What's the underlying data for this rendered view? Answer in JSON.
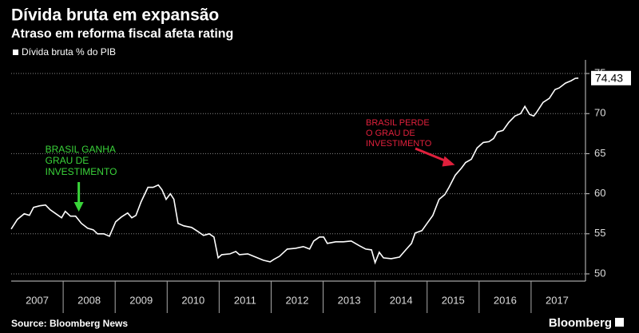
{
  "chart_data": {
    "type": "line",
    "title": "Dívida bruta em expansão",
    "subtitle": "Atraso em reforma fiscal afeta rating",
    "source": "Source: Bloomberg News",
    "brand": "Bloomberg",
    "x": [
      2007.0,
      2007.12,
      2007.25,
      2007.35,
      2007.43,
      2007.55,
      2007.66,
      2007.75,
      2007.86,
      2007.97,
      2008.04,
      2008.14,
      2008.24,
      2008.35,
      2008.47,
      2008.58,
      2008.66,
      2008.78,
      2008.89,
      2009.01,
      2009.12,
      2009.24,
      2009.32,
      2009.4,
      2009.5,
      2009.63,
      2009.73,
      2009.83,
      2009.9,
      2009.98,
      2010.06,
      2010.13,
      2010.21,
      2010.32,
      2010.47,
      2010.59,
      2010.7,
      2010.81,
      2010.9,
      2010.98,
      2011.05,
      2011.21,
      2011.32,
      2011.39,
      2011.55,
      2011.7,
      2011.85,
      2011.98,
      2012.05,
      2012.16,
      2012.31,
      2012.47,
      2012.62,
      2012.74,
      2012.82,
      2012.93,
      2013.01,
      2013.08,
      2013.24,
      2013.39,
      2013.54,
      2013.7,
      2013.82,
      2013.93,
      2014.0,
      2014.08,
      2014.16,
      2014.31,
      2014.47,
      2014.59,
      2014.7,
      2014.77,
      2014.9,
      2015.0,
      2015.11,
      2015.23,
      2015.34,
      2015.42,
      2015.54,
      2015.66,
      2015.74,
      2015.85,
      2015.96,
      2016.08,
      2016.19,
      2016.28,
      2016.35,
      2016.46,
      2016.57,
      2016.69,
      2016.8,
      2016.88,
      2016.97,
      2017.05,
      2017.11,
      2017.23,
      2017.35,
      2017.46,
      2017.54,
      2017.66,
      2017.77,
      2017.85,
      2017.91
    ],
    "series": [
      {
        "name": "Dívida bruta % do PIB",
        "color": "#ffffff",
        "values": [
          55.6,
          56.8,
          57.5,
          57.3,
          58.3,
          58.5,
          58.6,
          58.0,
          57.5,
          57.0,
          57.8,
          57.2,
          57.2,
          56.3,
          55.7,
          55.5,
          55.0,
          55.0,
          54.7,
          56.5,
          57.1,
          57.6,
          57.0,
          57.3,
          59.0,
          60.8,
          60.8,
          61.1,
          60.5,
          59.3,
          60.0,
          59.3,
          56.3,
          56.0,
          55.8,
          55.3,
          54.8,
          55.0,
          54.6,
          52.0,
          52.4,
          52.5,
          52.8,
          52.4,
          52.5,
          52.1,
          51.7,
          51.5,
          51.8,
          52.2,
          53.1,
          53.2,
          53.4,
          53.1,
          54.1,
          54.6,
          54.6,
          53.8,
          54.0,
          54.0,
          54.1,
          53.5,
          53.1,
          53.0,
          51.4,
          52.7,
          52.0,
          51.9,
          52.1,
          53.0,
          53.8,
          55.1,
          55.4,
          56.3,
          57.3,
          59.3,
          59.9,
          60.8,
          62.3,
          63.2,
          63.9,
          64.3,
          65.7,
          66.4,
          66.5,
          66.9,
          67.7,
          67.9,
          68.9,
          69.7,
          70.0,
          70.9,
          69.9,
          69.7,
          70.2,
          71.4,
          71.9,
          73.0,
          73.2,
          73.8,
          74.1,
          74.4,
          74.43
        ]
      }
    ],
    "xlim": [
      2007,
      2018
    ],
    "xticks": [
      {
        "value": 2007.5,
        "label": "2007"
      },
      {
        "value": 2008.5,
        "label": "2008"
      },
      {
        "value": 2009.5,
        "label": "2009"
      },
      {
        "value": 2010.5,
        "label": "2010"
      },
      {
        "value": 2011.5,
        "label": "2011"
      },
      {
        "value": 2012.5,
        "label": "2012"
      },
      {
        "value": 2013.5,
        "label": "2013"
      },
      {
        "value": 2014.5,
        "label": "2014"
      },
      {
        "value": 2015.5,
        "label": "2015"
      },
      {
        "value": 2016.5,
        "label": "2016"
      },
      {
        "value": 2017.5,
        "label": "2017"
      }
    ],
    "ylim": [
      49.1,
      76.7
    ],
    "yticks": [
      50,
      55,
      60,
      65,
      70,
      75
    ],
    "grid": true,
    "annotations": [
      {
        "lines": [
          "BRASIL GANHA",
          "GRAU DE",
          "INVESTIMENTO"
        ],
        "color": "#3ad43a",
        "x": 2008.3,
        "y": 57.8
      },
      {
        "lines": [
          "BRASIL PERDE",
          "O GRAU DE",
          "INVESTIMENTO"
        ],
        "color": "#e0203c",
        "x": 2015.55,
        "y": 63.6
      }
    ]
  }
}
